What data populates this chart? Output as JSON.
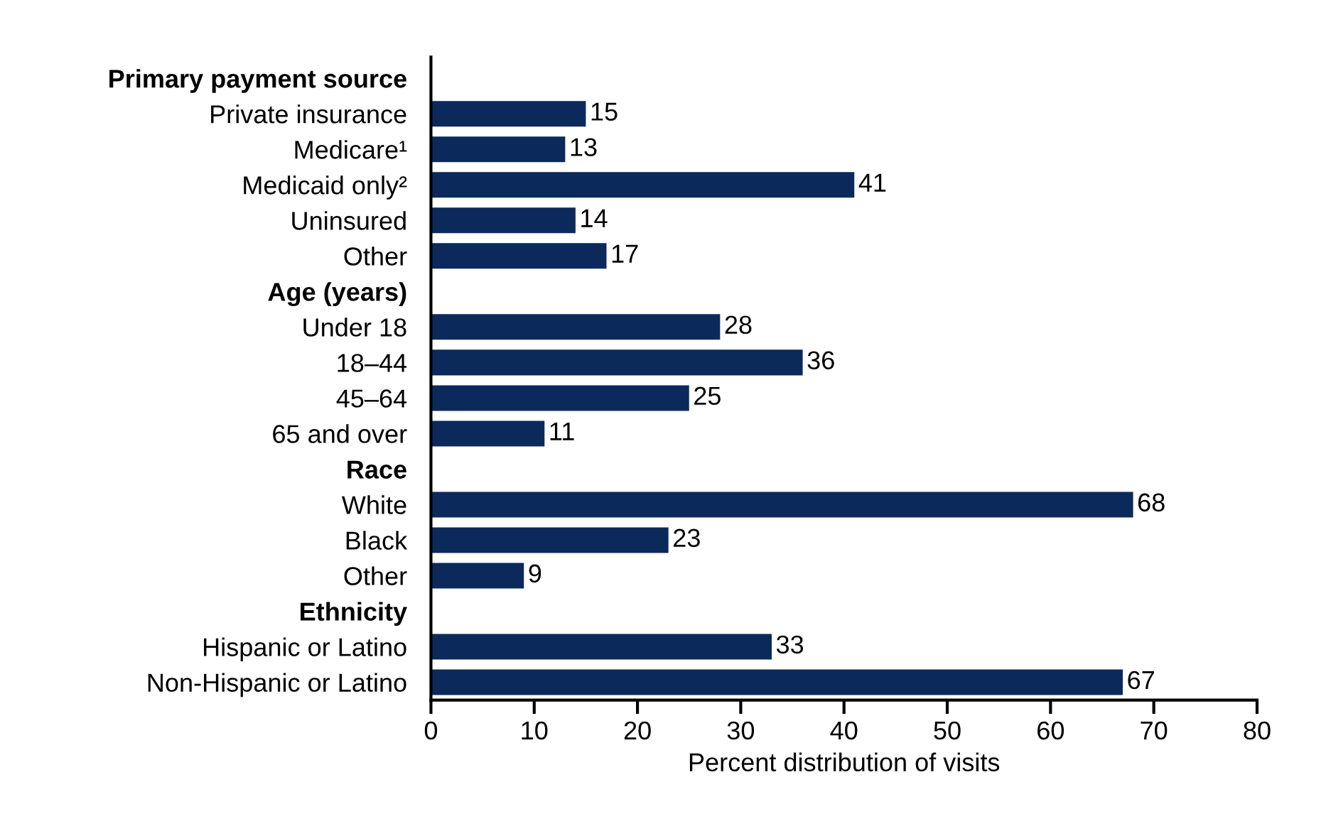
{
  "chart_data": {
    "type": "bar",
    "orientation": "horizontal",
    "xlabel": "Percent distribution of visits",
    "categories": [
      "Primary payment source",
      "Private insurance",
      "Medicare¹",
      "Medicaid only²",
      "Uninsured",
      "Other",
      "Age (years)",
      "Under 18",
      "18–44",
      "45–64",
      "65 and over",
      "Race",
      "White",
      "Black",
      "Other",
      "Ethnicity",
      "Hispanic or Latino",
      "Non-Hispanic or Latino"
    ],
    "values": [
      null,
      15,
      13,
      41,
      14,
      17,
      null,
      28,
      36,
      25,
      11,
      null,
      68,
      23,
      9,
      null,
      33,
      67
    ],
    "color": "#0b2a5b",
    "xlim": [
      0,
      80
    ],
    "xticks": [
      0,
      10,
      20,
      30,
      40,
      50,
      60,
      70,
      80
    ],
    "grid": false,
    "data_labels": true,
    "legend": false
  }
}
